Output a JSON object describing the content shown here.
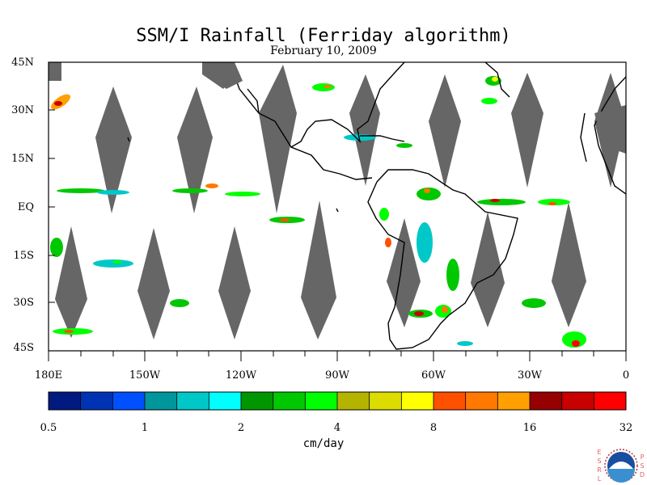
{
  "title": "SSM/I Rainfall (Ferriday algorithm)",
  "subtitle": "February 10, 2009",
  "map": {
    "lat_labels": [
      "45N",
      "30N",
      "15N",
      "EQ",
      "15S",
      "30S",
      "45S"
    ],
    "lon_labels": [
      "180E",
      "150W",
      "120W",
      "90W",
      "60W",
      "30W",
      "0"
    ],
    "land_color": "#ffffff",
    "missing_swath_color": "#666666",
    "coastline_color": "#000000"
  },
  "colorbar": {
    "unit": "cm/day",
    "tick_labels": [
      "0.5",
      "1",
      "2",
      "4",
      "8",
      "16",
      "32"
    ],
    "colors": [
      "#001a80",
      "#0033b3",
      "#0050ff",
      "#00969b",
      "#00c8c8",
      "#00ffff",
      "#009600",
      "#00c800",
      "#00ff00",
      "#b4b400",
      "#dcdc00",
      "#ffff00",
      "#ff5000",
      "#ff7800",
      "#ffa000",
      "#960000",
      "#c80000",
      "#ff0000"
    ]
  },
  "logo": {
    "left_letters": [
      "E",
      "S",
      "R",
      "L"
    ],
    "right_letters": [
      "P",
      "S",
      "D"
    ],
    "center_text": "NOAA"
  }
}
